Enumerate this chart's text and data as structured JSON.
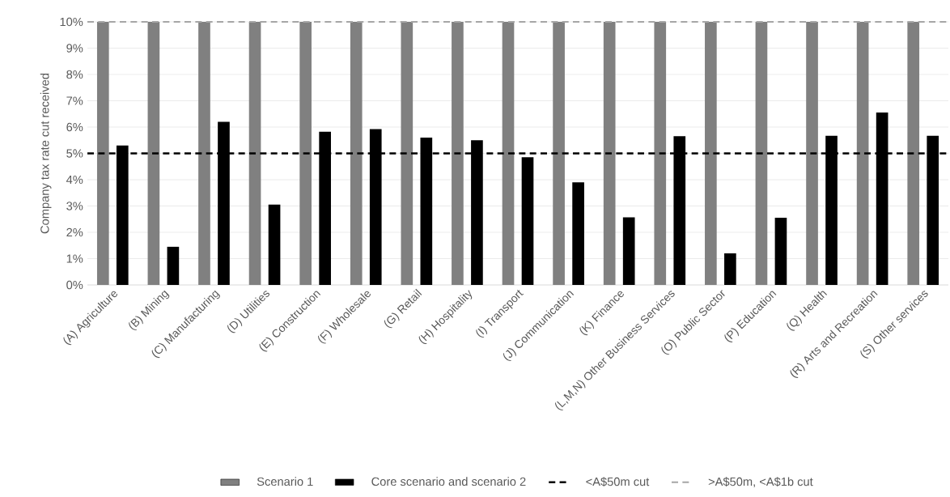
{
  "chart_data": {
    "type": "bar",
    "ylabel": "Company tax rate cut received",
    "categories": [
      "(A) Agriculture",
      "(B) Mining",
      "(C) Manufacturing",
      "(D) Utilities",
      "(E) Construction",
      "(F) Wholesale",
      "(G) Retail",
      "(H) Hospitality",
      "(I) Transport",
      "(J) Communication",
      "(K) Finance",
      "(L,M,N) Other Business Services",
      "(O) Public Sector",
      "(P) Education",
      "(Q) Health",
      "(R) Arts and Recreation",
      "(S) Other services"
    ],
    "series": [
      {
        "name": "Scenario 1",
        "color": "#808080",
        "values": [
          10,
          10,
          10,
          10,
          10,
          10,
          10,
          10,
          10,
          10,
          10,
          10,
          10,
          10,
          10,
          10,
          10
        ]
      },
      {
        "name": "Core scenario and scenario 2",
        "color": "#000000",
        "values": [
          5.3,
          1.45,
          6.2,
          3.05,
          5.82,
          5.92,
          5.6,
          5.5,
          4.85,
          3.9,
          2.57,
          5.65,
          1.2,
          2.55,
          5.67,
          6.55,
          5.67
        ]
      }
    ],
    "ylim": [
      0,
      10
    ],
    "yticks": [
      {
        "value": 0,
        "label": "0%"
      },
      {
        "value": 1,
        "label": "1%"
      },
      {
        "value": 2,
        "label": "2%"
      },
      {
        "value": 3,
        "label": "3%"
      },
      {
        "value": 4,
        "label": "4%"
      },
      {
        "value": 5,
        "label": "5%"
      },
      {
        "value": 6,
        "label": "6%"
      },
      {
        "value": 7,
        "label": "7%"
      },
      {
        "value": 8,
        "label": "8%"
      },
      {
        "value": 9,
        "label": "9%"
      },
      {
        "value": 10,
        "label": "10%"
      }
    ],
    "ref_lines": [
      {
        "axis": "y",
        "value": 5,
        "label": "<A$50m cut",
        "color": "#000000",
        "line_style": "dashed"
      },
      {
        "axis": "y",
        "value": 10,
        "label": ">A$50m, <A$1b cut",
        "color": "#a6a6a6",
        "line_style": "dashed"
      }
    ],
    "grid": "y",
    "legend": "bottom"
  }
}
